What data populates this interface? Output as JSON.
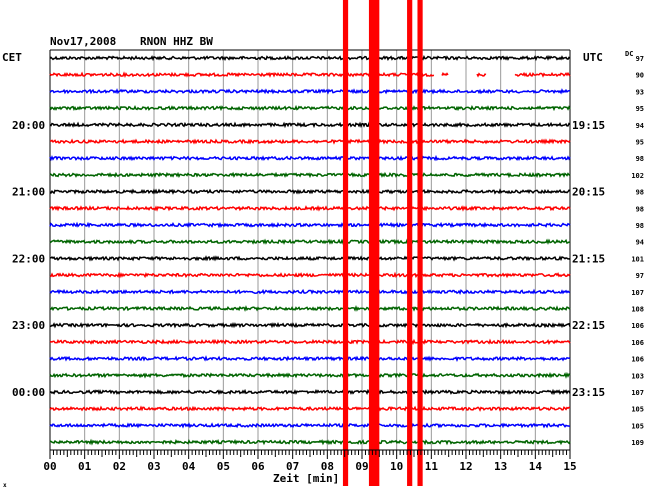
{
  "header": {
    "date": "Nov17,2008",
    "station": "RNON HHZ BW",
    "left_label": "CET",
    "right_label": "UTC",
    "dc_label": "DC"
  },
  "footer": {
    "xlabel": "Zeit [min]",
    "corner_mark": "x"
  },
  "colors": {
    "black": "#000000",
    "red": "#ff0000",
    "blue": "#0000ff",
    "green": "#006400",
    "grid": "#999999",
    "quake": "#ff0000"
  },
  "chart_data": {
    "type": "line",
    "title": "Nov17,2008  RNON HHZ BW",
    "xlabel": "Zeit [min]",
    "xlim": [
      0,
      15
    ],
    "x_ticks": [
      "00",
      "01",
      "02",
      "03",
      "04",
      "05",
      "06",
      "07",
      "08",
      "09",
      "10",
      "11",
      "12",
      "13",
      "14",
      "15"
    ],
    "row_count": 24,
    "row_color_cycle": [
      "black",
      "red",
      "blue",
      "green"
    ],
    "cet_labels": [
      {
        "row": 4,
        "text": "20:00"
      },
      {
        "row": 8,
        "text": "21:00"
      },
      {
        "row": 12,
        "text": "22:00"
      },
      {
        "row": 16,
        "text": "23:00"
      },
      {
        "row": 20,
        "text": "00:00"
      }
    ],
    "utc_labels": [
      {
        "row": 4,
        "text": "19:15"
      },
      {
        "row": 8,
        "text": "20:15"
      },
      {
        "row": 12,
        "text": "21:15"
      },
      {
        "row": 16,
        "text": "22:15"
      },
      {
        "row": 20,
        "text": "23:15"
      }
    ],
    "dc_values": [
      "97",
      "90",
      "93",
      "95",
      "94",
      "95",
      "98",
      "102",
      "98",
      "98",
      "98",
      "94",
      "101",
      "97",
      "107",
      "108",
      "106",
      "106",
      "106",
      "103",
      "107",
      "105",
      "105",
      "109"
    ],
    "event_bands": [
      {
        "x_start": 8.45,
        "x_end": 8.6
      },
      {
        "x_start": 9.2,
        "x_end": 9.5
      },
      {
        "x_start": 10.3,
        "x_end": 10.45
      },
      {
        "x_start": 10.6,
        "x_end": 10.75
      }
    ],
    "data_gaps": [
      {
        "row": 1,
        "x_start": 11.1,
        "x_end": 11.3
      },
      {
        "row": 1,
        "x_start": 11.5,
        "x_end": 12.3
      },
      {
        "row": 1,
        "x_start": 12.6,
        "x_end": 13.4
      }
    ]
  }
}
